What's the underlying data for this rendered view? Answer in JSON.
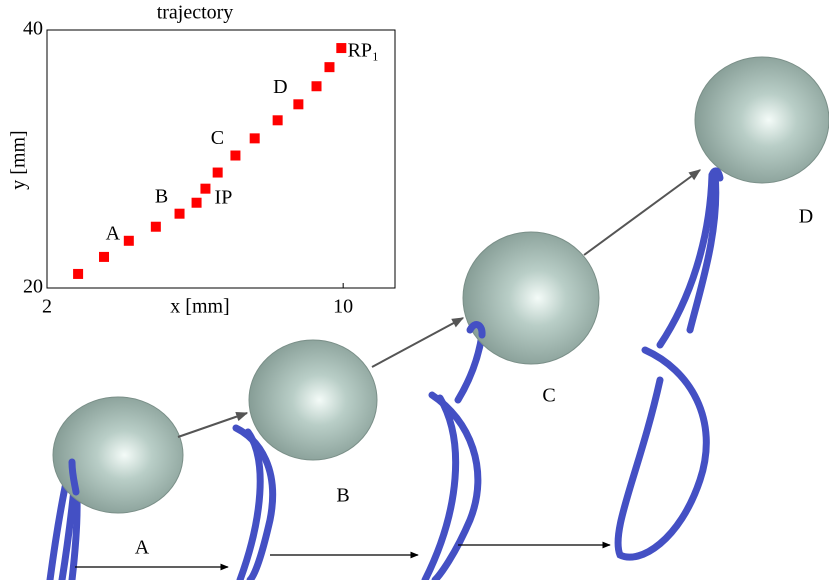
{
  "chart_data": {
    "type": "scatter",
    "title": "trajectory",
    "x_label": "x [mm]",
    "y_label": "y [mm]",
    "x": [
      2.84,
      3.54,
      4.21,
      4.94,
      5.58,
      6.04,
      6.28,
      6.61,
      7.09,
      7.61,
      8.23,
      8.79,
      9.28,
      9.63,
      9.95
    ],
    "values": [
      21.09,
      22.41,
      23.66,
      24.75,
      25.76,
      26.61,
      27.7,
      28.95,
      30.27,
      31.6,
      33.0,
      34.24,
      35.64,
      37.12,
      38.6
    ],
    "point_labels": [
      null,
      null,
      "A",
      null,
      "B",
      null,
      "IP",
      null,
      "C",
      null,
      null,
      "D",
      null,
      null,
      "RP₁"
    ],
    "color": "#ff0000",
    "xlim": [
      2,
      11.4
    ],
    "ylim": [
      20,
      40
    ],
    "xticks": [
      2,
      10
    ],
    "yticks": [
      20,
      40
    ],
    "grid": false
  },
  "figure_labels": [
    "A",
    "B",
    "C",
    "D"
  ]
}
